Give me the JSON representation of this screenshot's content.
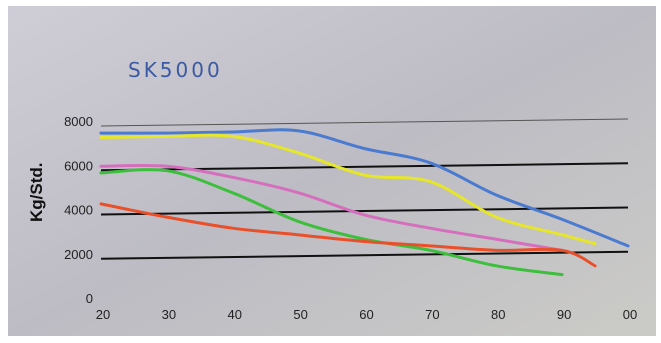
{
  "chart_data": {
    "type": "line",
    "title": "SK5000",
    "ylabel": "Kg/Std.",
    "xlabel": "",
    "ylim": [
      0,
      8000
    ],
    "xlim": [
      20,
      100
    ],
    "grid": true,
    "yticks": [
      "0",
      "2000",
      "4000",
      "6000",
      "8000"
    ],
    "xticks": [
      "20",
      "30",
      "40",
      "50",
      "60",
      "70",
      "80",
      "90",
      "00"
    ],
    "series": [
      {
        "color": "#4a7bd0",
        "x": [
          20,
          30,
          40,
          50,
          60,
          70,
          80,
          90,
          100
        ],
        "values": [
          7500,
          7500,
          7550,
          7600,
          6800,
          6150,
          4700,
          3600,
          2400
        ]
      },
      {
        "color": "#e6e62a",
        "x": [
          20,
          30,
          40,
          50,
          60,
          70,
          80,
          90,
          95
        ],
        "values": [
          7300,
          7350,
          7350,
          6600,
          5600,
          5300,
          3700,
          2900,
          2500
        ]
      },
      {
        "color": "#d56fbd",
        "x": [
          20,
          30,
          40,
          50,
          60,
          70,
          80,
          90
        ],
        "values": [
          6000,
          6000,
          5500,
          4800,
          3800,
          3200,
          2700,
          2200
        ]
      },
      {
        "color": "#3dbf3d",
        "x": [
          20,
          30,
          40,
          50,
          60,
          70,
          80,
          90
        ],
        "values": [
          5700,
          5800,
          4800,
          3500,
          2700,
          2200,
          1500,
          1100
        ]
      },
      {
        "color": "#e9502a",
        "x": [
          20,
          30,
          40,
          50,
          60,
          70,
          80,
          90,
          95
        ],
        "values": [
          4300,
          3700,
          3200,
          2900,
          2600,
          2400,
          2200,
          2200,
          1500
        ]
      }
    ]
  }
}
